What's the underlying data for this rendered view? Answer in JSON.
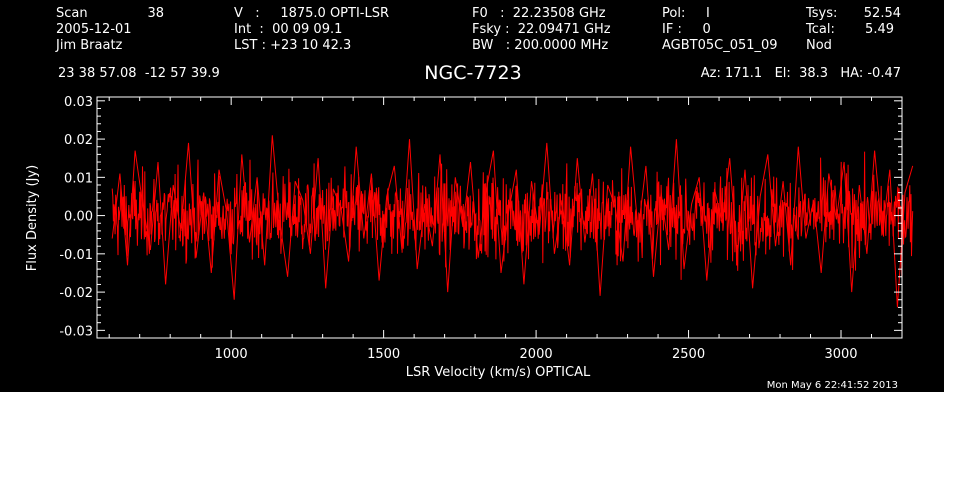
{
  "header": {
    "col1": {
      "scan_label": "Scan",
      "scan_value": "38",
      "date": "2005-12-01",
      "observer": "Jim Braatz"
    },
    "col2": {
      "v_line": "V   :     1875.0 OPTI-LSR",
      "int_line": "Int  :  00 09 09.1",
      "lst_line": "LST : +23 10 42.3"
    },
    "col3": {
      "f0_line": "F0   :  22.23508 GHz",
      "fsky_line": "Fsky :  22.09471 GHz",
      "bw_line": "BW   : 200.0000 MHz"
    },
    "col4": {
      "pol_line": "Pol:     I",
      "if_line": "IF :     0",
      "proj": "AGBT05C_051_09"
    },
    "col5": {
      "tsys_label": "Tsys:",
      "tsys_value": "52.54",
      "tcal_label": "Tcal:",
      "tcal_value": "5.49",
      "mode": "Nod"
    },
    "coords": "23 38 57.08  -12 57 39.9",
    "azel": "Az: 171.1   El:  38.3   HA: -0.47"
  },
  "footer": {
    "timestamp": "Mon May  6 22:41:52 2013"
  },
  "colors": {
    "background": "#000000",
    "trace": "#ff0000",
    "axes": "#ffffff"
  },
  "chart_data": {
    "type": "line",
    "title": "NGC-7723",
    "xlabel": "LSR Velocity (km/s) OPTICAL",
    "ylabel": "Flux Density (Jy)",
    "xlim": [
      560,
      3200
    ],
    "ylim": [
      -0.032,
      0.031
    ],
    "x_ticks": [
      1000,
      1500,
      2000,
      2500,
      3000
    ],
    "x_tick_labels": [
      "1000",
      "1500",
      "2000",
      "2500",
      "3000"
    ],
    "y_ticks": [
      -0.03,
      -0.02,
      -0.01,
      0.0,
      0.01,
      0.02,
      0.03
    ],
    "y_tick_labels": [
      "-0.03",
      "-0.02",
      "-0.01",
      "0.00",
      "0.01",
      "0.02",
      "0.03"
    ],
    "grid": false,
    "series": [
      {
        "x_start": 610,
        "x_step": 25,
        "values": [
          -0.006,
          0.011,
          -0.013,
          0.017,
          0.003,
          -0.009,
          0.014,
          -0.018,
          0.008,
          -0.004,
          0.019,
          -0.011,
          0.006,
          -0.015,
          0.012,
          0.001,
          -0.022,
          0.016,
          -0.007,
          0.01,
          -0.013,
          0.021,
          -0.002,
          -0.016,
          0.009,
          0.004,
          -0.01,
          0.015,
          -0.019,
          0.007,
          0.002,
          -0.012,
          0.018,
          -0.006,
          0.011,
          -0.017,
          0.005,
          0.013,
          -0.009,
          0.02,
          -0.014,
          0.003,
          -0.008,
          0.016,
          -0.02,
          0.01,
          -0.003,
          0.014,
          -0.011,
          0.006,
          0.017,
          -0.015,
          0.001,
          0.012,
          -0.018,
          0.009,
          -0.005,
          0.019,
          -0.01,
          0.004,
          -0.013,
          0.015,
          -0.007,
          0.011,
          -0.021,
          0.008,
          0.002,
          -0.012,
          0.018,
          -0.004,
          0.013,
          -0.016,
          0.006,
          -0.009,
          0.02,
          -0.014,
          0.003,
          0.01,
          -0.017,
          0.007,
          -0.002,
          0.015,
          -0.011,
          0.012,
          -0.019,
          0.005,
          0.016,
          -0.008,
          0.009,
          -0.013,
          0.018,
          -0.006,
          0.004,
          -0.015,
          0.011,
          -0.001,
          0.014,
          -0.02,
          0.008,
          -0.01,
          0.017,
          -0.005,
          0.012,
          -0.024,
          0.006,
          0.013
        ]
      }
    ]
  }
}
